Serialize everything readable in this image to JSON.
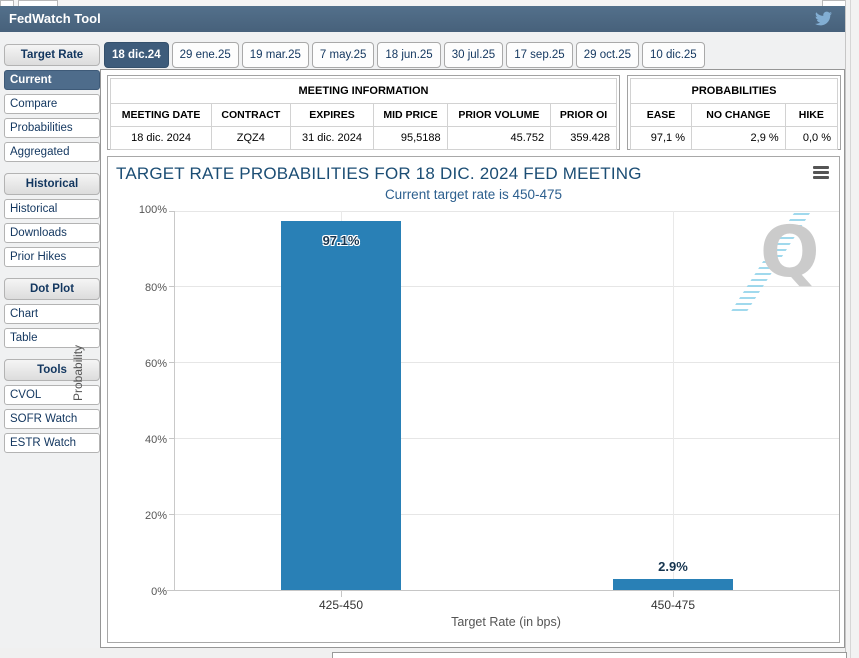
{
  "header": {
    "title": "FedWatch Tool"
  },
  "sidebar": {
    "groups": [
      {
        "label": "Target Rate",
        "items": [
          {
            "label": "Current",
            "selected": true
          },
          {
            "label": "Compare"
          },
          {
            "label": "Probabilities"
          },
          {
            "label": "Aggregated"
          }
        ]
      },
      {
        "label": "Historical",
        "items": [
          {
            "label": "Historical"
          },
          {
            "label": "Downloads"
          },
          {
            "label": "Prior Hikes"
          }
        ]
      },
      {
        "label": "Dot Plot",
        "items": [
          {
            "label": "Chart"
          },
          {
            "label": "Table"
          }
        ]
      },
      {
        "label": "Tools",
        "items": [
          {
            "label": "CVOL"
          },
          {
            "label": "SOFR Watch"
          },
          {
            "label": "ESTR Watch"
          }
        ]
      }
    ]
  },
  "tabs": [
    {
      "label": "18 dic.24",
      "selected": true
    },
    {
      "label": "29 ene.25"
    },
    {
      "label": "19 mar.25"
    },
    {
      "label": "7 may.25"
    },
    {
      "label": "18 jun.25"
    },
    {
      "label": "30 jul.25"
    },
    {
      "label": "17 sep.25"
    },
    {
      "label": "29 oct.25"
    },
    {
      "label": "10 dic.25"
    }
  ],
  "meeting_information": {
    "title": "MEETING INFORMATION",
    "columns": [
      "MEETING DATE",
      "CONTRACT",
      "EXPIRES",
      "MID PRICE",
      "PRIOR VOLUME",
      "PRIOR OI"
    ],
    "values": [
      "18 dic. 2024",
      "ZQZ4",
      "31 dic. 2024",
      "95,5188",
      "45.752",
      "359.428"
    ]
  },
  "probabilities": {
    "title": "PROBABILITIES",
    "columns": [
      "EASE",
      "NO CHANGE",
      "HIKE"
    ],
    "values": [
      "97,1 %",
      "2,9 %",
      "0,0 %"
    ]
  },
  "chart_data": {
    "type": "bar",
    "title": "TARGET RATE PROBABILITIES FOR 18 DIC. 2024 FED MEETING",
    "subtitle": "Current target rate is 450-475",
    "categories": [
      "425-450",
      "450-475"
    ],
    "values": [
      97.1,
      2.9
    ],
    "data_labels": [
      "97.1%",
      "2.9%"
    ],
    "xlabel": "Target Rate (in bps)",
    "ylabel": "Probability",
    "ylim": [
      0,
      100
    ],
    "yticks": [
      "0%",
      "20%",
      "40%",
      "60%",
      "80%",
      "100%"
    ],
    "grid": true,
    "legend": false,
    "bar_color": "#2980b6"
  },
  "watermark": {
    "letter": "Q"
  },
  "colors": {
    "header_bg": "#4a6880",
    "selected_bg": "#3e5c7b",
    "bar": "#2980b6",
    "chart_title": "#1b4d74",
    "chart_subtitle": "#2c5f8e",
    "twitter_blue": "#82aed3"
  }
}
